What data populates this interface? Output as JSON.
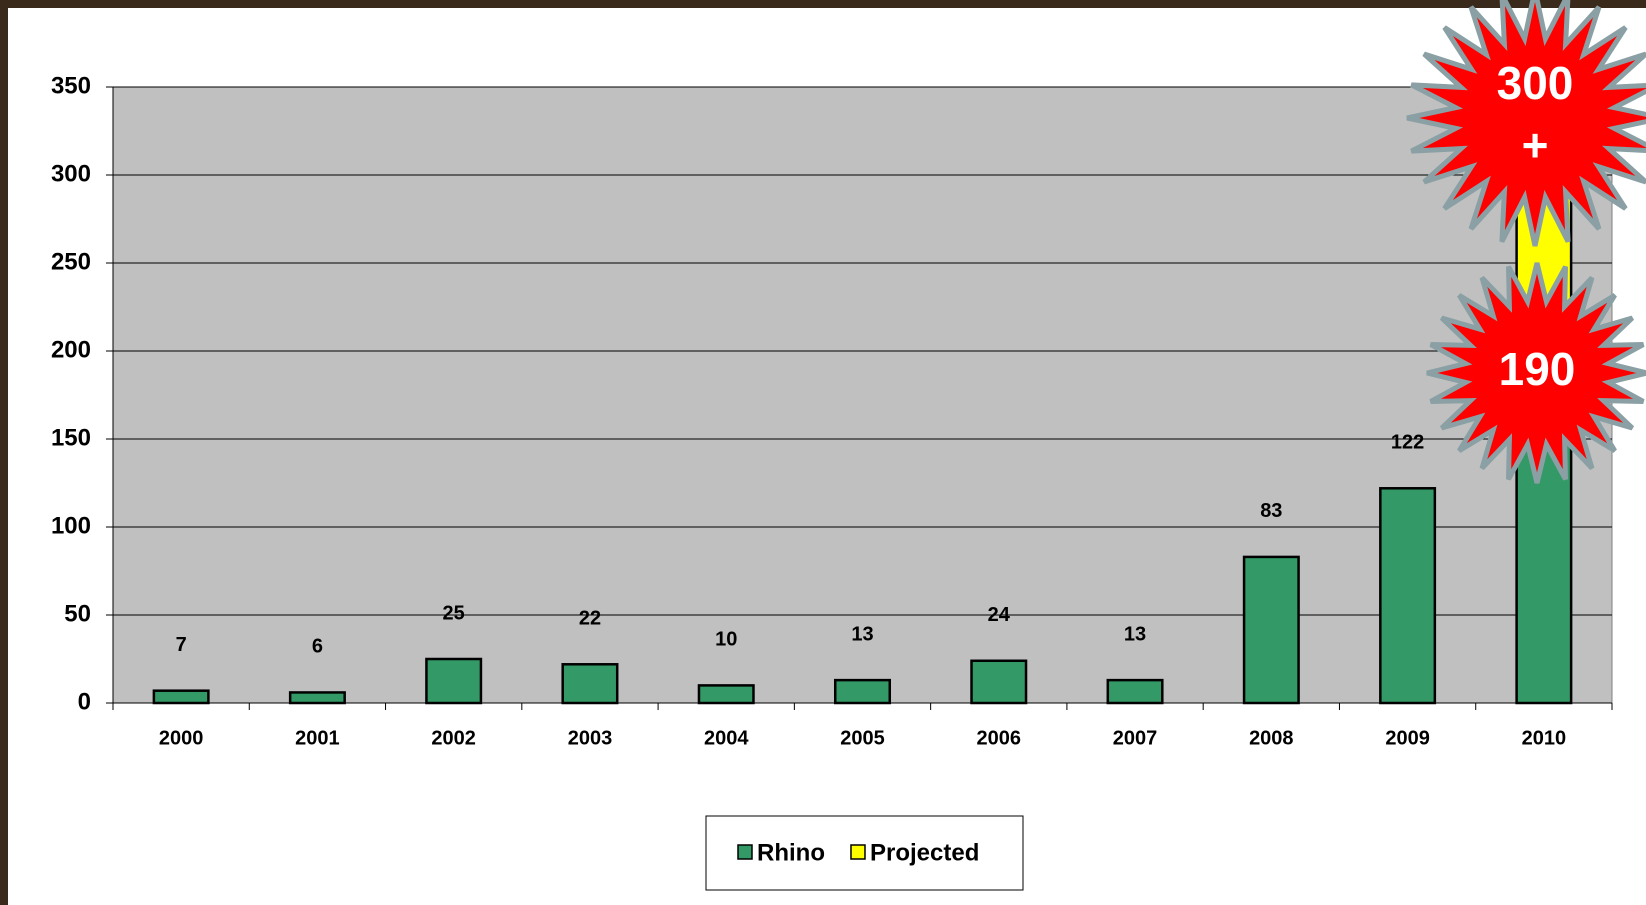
{
  "chart_data": {
    "type": "stacked-bar",
    "categories": [
      "2000",
      "2001",
      "2002",
      "2003",
      "2004",
      "2005",
      "2006",
      "2007",
      "2008",
      "2009",
      "2010"
    ],
    "series": [
      {
        "name": "Rhino",
        "color": "#339966",
        "values": [
          7,
          6,
          25,
          22,
          10,
          13,
          24,
          13,
          83,
          122,
          190
        ]
      },
      {
        "name": "Projected",
        "color": "#ffff00",
        "values": [
          null,
          null,
          null,
          null,
          null,
          null,
          null,
          null,
          null,
          null,
          110
        ]
      }
    ],
    "ylim": [
      0,
      350
    ],
    "yticks": [
      0,
      50,
      100,
      150,
      200,
      250,
      300,
      350
    ],
    "grid": true,
    "annotations": [
      [
        "300",
        "+"
      ],
      [
        "190"
      ]
    ]
  }
}
